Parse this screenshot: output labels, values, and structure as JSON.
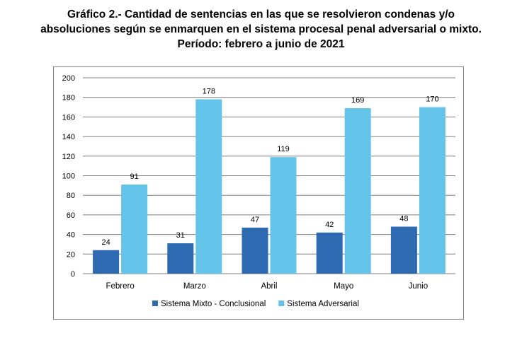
{
  "title": {
    "line1": "Gráfico 2.- Cantidad de sentencias en las que se resolvieron condenas y/o",
    "line2": "absoluciones según se enmarquen en el sistema procesal penal adversarial o mixto.",
    "line3": "Período: febrero a junio de 2021"
  },
  "colors": {
    "mixto": "#2e6ab2",
    "adversarial": "#63c3e8",
    "grid": "#7f7f7f",
    "text": "#000000"
  },
  "chart_data": {
    "type": "bar",
    "categories": [
      "Febrero",
      "Marzo",
      "Abril",
      "Mayo",
      "Junio"
    ],
    "series": [
      {
        "name": "Sistema Mixto - Conclusional",
        "values": [
          24,
          31,
          47,
          42,
          48
        ]
      },
      {
        "name": "Sistema Adversarial",
        "values": [
          91,
          178,
          119,
          169,
          170
        ]
      }
    ],
    "ylim": [
      0,
      200
    ],
    "yticks": [
      0,
      20,
      40,
      60,
      80,
      100,
      120,
      140,
      160,
      180,
      200
    ],
    "grid": true,
    "legend": "bottom",
    "data_labels": true
  }
}
